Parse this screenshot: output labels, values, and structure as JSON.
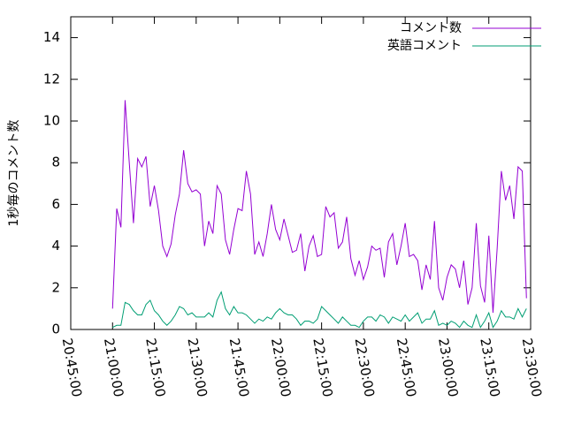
{
  "chart_data": {
    "type": "line",
    "ylabel": "1秒毎のコメント数",
    "x": [
      "21:00:00",
      "21:01:30",
      "21:03:00",
      "21:04:30",
      "21:06:00",
      "21:07:30",
      "21:09:00",
      "21:10:30",
      "21:12:00",
      "21:13:30",
      "21:15:00",
      "21:16:30",
      "21:18:00",
      "21:19:30",
      "21:21:00",
      "21:22:30",
      "21:24:00",
      "21:25:30",
      "21:27:00",
      "21:28:30",
      "21:30:00",
      "21:31:30",
      "21:33:00",
      "21:34:30",
      "21:36:00",
      "21:37:30",
      "21:39:00",
      "21:40:30",
      "21:42:00",
      "21:43:30",
      "21:45:00",
      "21:46:30",
      "21:48:00",
      "21:49:30",
      "21:51:00",
      "21:52:30",
      "21:54:00",
      "21:55:30",
      "21:57:00",
      "21:58:30",
      "22:00:00",
      "22:01:30",
      "22:03:00",
      "22:04:30",
      "22:06:00",
      "22:07:30",
      "22:09:00",
      "22:10:30",
      "22:12:00",
      "22:13:30",
      "22:15:00",
      "22:16:30",
      "22:18:00",
      "22:19:30",
      "22:21:00",
      "22:22:30",
      "22:24:00",
      "22:25:30",
      "22:27:00",
      "22:28:30",
      "22:30:00",
      "22:31:30",
      "22:33:00",
      "22:34:30",
      "22:36:00",
      "22:37:30",
      "22:39:00",
      "22:40:30",
      "22:42:00",
      "22:43:30",
      "22:45:00",
      "22:46:30",
      "22:48:00",
      "22:49:30",
      "22:51:00",
      "22:52:30",
      "22:54:00",
      "22:55:30",
      "22:57:00",
      "22:58:30",
      "23:00:00",
      "23:01:30",
      "23:03:00",
      "23:04:30",
      "23:06:00",
      "23:07:30",
      "23:09:00",
      "23:10:30",
      "23:12:00",
      "23:13:30",
      "23:15:00",
      "23:16:30",
      "23:18:00",
      "23:19:30",
      "23:21:00",
      "23:22:30",
      "23:24:00",
      "23:25:30",
      "23:27:00",
      "23:28:30"
    ],
    "series": [
      {
        "name": "コメント数",
        "color": "#9400d3",
        "values": [
          1.0,
          5.8,
          4.9,
          11.0,
          8,
          5.1,
          8.2,
          7.8,
          8.3,
          5.9,
          6.9,
          5.7,
          4.0,
          3.5,
          4.1,
          5.5,
          6.5,
          8.6,
          7.0,
          6.6,
          6.7,
          6.5,
          4.0,
          5.2,
          4.6,
          6.9,
          6.5,
          4.3,
          3.6,
          4.8,
          5.8,
          5.7,
          7.6,
          6.5,
          3.6,
          4.2,
          3.5,
          4.6,
          6.0,
          4.8,
          4.3,
          5.3,
          4.5,
          3.7,
          3.8,
          4.6,
          2.8,
          4.0,
          4.5,
          3.5,
          3.6,
          5.9,
          5.4,
          5.6,
          3.9,
          4.2,
          5.4,
          3.4,
          2.6,
          3.3,
          2.4,
          3.0,
          4.0,
          3.8,
          3.9,
          2.5,
          4.2,
          4.6,
          3.1,
          4.0,
          5.1,
          3.5,
          3.6,
          3.3,
          1.9,
          3.1,
          2.4,
          5.2,
          2.0,
          1.4,
          2.5,
          3.1,
          2.9,
          2.0,
          3.3,
          1.2,
          2.0,
          5.1,
          2.1,
          1.3,
          4.5,
          0.8,
          3.9,
          7.6,
          6.2,
          6.9,
          5.3,
          7.8,
          7.6,
          1.5
        ]
      },
      {
        "name": "英語コメント",
        "color": "#009e73",
        "values": [
          0.1,
          0.2,
          0.2,
          1.3,
          1.2,
          0.9,
          0.7,
          0.7,
          1.2,
          1.4,
          0.9,
          0.7,
          0.4,
          0.2,
          0.4,
          0.7,
          1.1,
          1.0,
          0.7,
          0.8,
          0.6,
          0.6,
          0.6,
          0.8,
          0.6,
          1.4,
          1.8,
          1.0,
          0.7,
          1.1,
          0.8,
          0.8,
          0.7,
          0.5,
          0.3,
          0.5,
          0.4,
          0.6,
          0.5,
          0.8,
          1.0,
          0.8,
          0.7,
          0.7,
          0.5,
          0.2,
          0.4,
          0.4,
          0.3,
          0.5,
          1.1,
          0.9,
          0.7,
          0.5,
          0.3,
          0.6,
          0.4,
          0.2,
          0.2,
          0.1,
          0.4,
          0.6,
          0.6,
          0.4,
          0.7,
          0.6,
          0.3,
          0.6,
          0.5,
          0.4,
          0.7,
          0.4,
          0.6,
          0.8,
          0.3,
          0.5,
          0.5,
          0.9,
          0.2,
          0.3,
          0.2,
          0.4,
          0.3,
          0.1,
          0.4,
          0.2,
          0.1,
          0.7,
          0.1,
          0.4,
          0.8,
          0.1,
          0.4,
          0.9,
          0.6,
          0.6,
          0.5,
          1.0,
          0.6,
          1.0
        ]
      }
    ],
    "xlim": [
      "20:45:00",
      "23:30:00"
    ],
    "xticks": [
      "20:45:00",
      "21:00:00",
      "21:15:00",
      "21:30:00",
      "21:45:00",
      "22:00:00",
      "22:15:00",
      "22:30:00",
      "22:45:00",
      "23:00:00",
      "23:15:00",
      "23:30:00"
    ],
    "ylim": [
      0,
      15
    ],
    "yticks": [
      0,
      2,
      4,
      6,
      8,
      10,
      12,
      14
    ],
    "legend": "top-right"
  }
}
